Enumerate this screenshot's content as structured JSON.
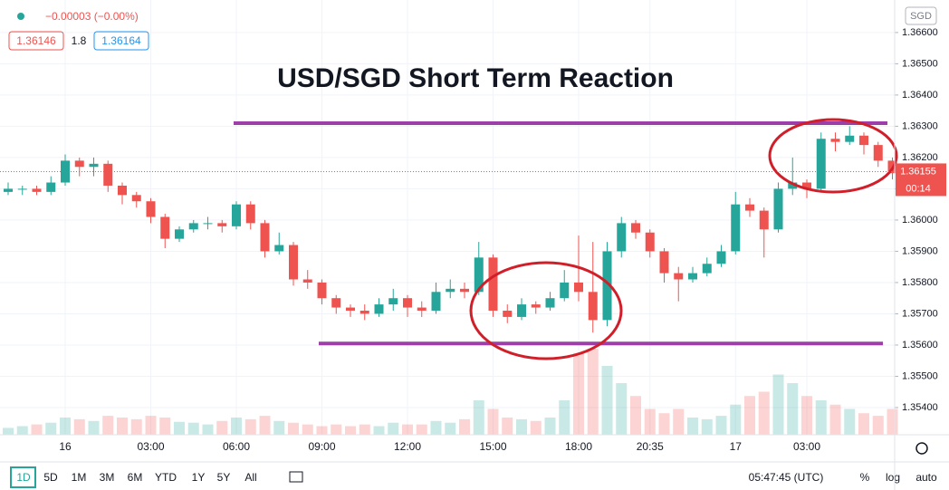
{
  "chart_data": {
    "type": "candlestick",
    "title": "USD/SGD Short Term Reaction",
    "categories": [
      null,
      null,
      null,
      null,
      "16",
      null,
      null,
      null,
      null,
      null,
      "03:00",
      null,
      null,
      null,
      null,
      null,
      "06:00",
      null,
      null,
      null,
      null,
      null,
      "09:00",
      null,
      null,
      null,
      null,
      null,
      "12:00",
      null,
      null,
      null,
      null,
      null,
      "15:00",
      null,
      null,
      null,
      null,
      null,
      "18:00",
      null,
      null,
      null,
      null,
      "20:35",
      null,
      null,
      null,
      null,
      null,
      "17",
      null,
      null,
      null,
      null,
      "03:00",
      null,
      null,
      null,
      null,
      null,
      null
    ],
    "open": [
      1.3609,
      1.361,
      1.361,
      1.3609,
      1.3612,
      1.3619,
      1.3617,
      1.3618,
      1.3611,
      1.3608,
      1.3606,
      1.3601,
      1.3594,
      1.3597,
      1.3599,
      1.3599,
      1.3598,
      1.3605,
      1.3599,
      1.359,
      1.3592,
      1.3581,
      1.358,
      1.3575,
      1.3572,
      1.3571,
      1.357,
      1.3573,
      1.3575,
      1.3572,
      1.3571,
      1.3577,
      1.3578,
      1.3577,
      1.3588,
      1.3571,
      1.3569,
      1.3573,
      1.3572,
      1.3575,
      1.358,
      1.3577,
      1.3568,
      1.359,
      1.3599,
      1.3596,
      1.359,
      1.3583,
      1.3581,
      1.3583,
      1.3586,
      1.359,
      1.3605,
      1.3603,
      1.3597,
      1.361,
      1.3612,
      1.361,
      1.3626,
      1.3625,
      1.3627,
      1.3624,
      1.3619
    ],
    "high": [
      1.3612,
      1.3611,
      1.3611,
      1.3614,
      1.3621,
      1.362,
      1.362,
      1.3619,
      1.3612,
      1.3609,
      1.3607,
      1.3602,
      1.3598,
      1.36,
      1.3601,
      1.36,
      1.3606,
      1.3606,
      1.36,
      1.3596,
      1.3593,
      1.3584,
      1.3581,
      1.3576,
      1.3573,
      1.3573,
      1.3575,
      1.3578,
      1.3576,
      1.3574,
      1.358,
      1.3581,
      1.358,
      1.3593,
      1.3589,
      1.3573,
      1.3575,
      1.3574,
      1.3577,
      1.3584,
      1.3595,
      1.3593,
      1.3593,
      1.3601,
      1.36,
      1.3597,
      1.3591,
      1.3585,
      1.3585,
      1.3588,
      1.3592,
      1.3609,
      1.3607,
      1.3604,
      1.3612,
      1.362,
      1.3613,
      1.3628,
      1.3628,
      1.363,
      1.3628,
      1.3625,
      1.362
    ],
    "low": [
      1.3608,
      1.3608,
      1.3608,
      1.3608,
      1.3611,
      1.3614,
      1.3614,
      1.3609,
      1.3605,
      1.3604,
      1.3599,
      1.3591,
      1.3593,
      1.3596,
      1.3597,
      1.3596,
      1.3597,
      1.3597,
      1.3588,
      1.3589,
      1.3579,
      1.3578,
      1.3573,
      1.357,
      1.3569,
      1.3568,
      1.3569,
      1.3571,
      1.3569,
      1.3569,
      1.357,
      1.3575,
      1.3575,
      1.3576,
      1.3569,
      1.3567,
      1.3568,
      1.357,
      1.3571,
      1.3574,
      1.3574,
      1.3564,
      1.3566,
      1.3588,
      1.3594,
      1.3588,
      1.358,
      1.3574,
      1.358,
      1.3582,
      1.3585,
      1.3589,
      1.3601,
      1.3588,
      1.3596,
      1.3608,
      1.3607,
      1.3609,
      1.3622,
      1.3624,
      1.3621,
      1.3617,
      1.3613
    ],
    "close": [
      1.361,
      1.361,
      1.3609,
      1.3612,
      1.3619,
      1.3617,
      1.3618,
      1.3611,
      1.3608,
      1.3606,
      1.3601,
      1.3594,
      1.3597,
      1.3599,
      1.3599,
      1.3598,
      1.3605,
      1.3599,
      1.359,
      1.3592,
      1.3581,
      1.358,
      1.3575,
      1.3572,
      1.3571,
      1.357,
      1.3573,
      1.3575,
      1.3572,
      1.3571,
      1.3577,
      1.3578,
      1.3577,
      1.3588,
      1.3571,
      1.3569,
      1.3573,
      1.3572,
      1.3575,
      1.358,
      1.3577,
      1.3568,
      1.359,
      1.3599,
      1.3596,
      1.359,
      1.3583,
      1.3581,
      1.3583,
      1.3586,
      1.359,
      1.3605,
      1.3603,
      1.3597,
      1.361,
      1.3612,
      1.361,
      1.3626,
      1.3625,
      1.3627,
      1.3624,
      1.3619,
      1.3615
    ],
    "volume": [
      8,
      10,
      12,
      14,
      20,
      18,
      16,
      22,
      20,
      18,
      22,
      20,
      15,
      14,
      12,
      16,
      20,
      18,
      22,
      16,
      14,
      12,
      10,
      12,
      10,
      12,
      10,
      14,
      12,
      12,
      16,
      14,
      18,
      40,
      30,
      20,
      18,
      16,
      20,
      40,
      95,
      100,
      80,
      60,
      45,
      30,
      25,
      30,
      20,
      18,
      22,
      35,
      45,
      50,
      70,
      60,
      45,
      40,
      35,
      30,
      25,
      22,
      30
    ],
    "up_color": "#26a69a",
    "down_color": "#ef5350",
    "level_color": "#9c3fa8",
    "grid": true,
    "ylim": [
      1.35313,
      1.36704
    ],
    "yticks": [
      {
        "value": 1.366,
        "label": "1.36600"
      },
      {
        "value": 1.365,
        "label": "1.36500"
      },
      {
        "value": 1.364,
        "label": "1.36400"
      },
      {
        "value": 1.363,
        "label": "1.36300"
      },
      {
        "value": 1.362,
        "label": "1.36200"
      },
      {
        "value": 1.361,
        "label": "1.36100"
      },
      {
        "value": 1.36,
        "label": "1.36000"
      },
      {
        "value": 1.359,
        "label": "1.35900"
      },
      {
        "value": 1.358,
        "label": "1.35800"
      },
      {
        "value": 1.357,
        "label": "1.35700"
      },
      {
        "value": 1.356,
        "label": "1.35600"
      },
      {
        "value": 1.355,
        "label": "1.35500"
      },
      {
        "value": 1.354,
        "label": "1.35400"
      }
    ],
    "levels": [
      1.3631,
      1.35605
    ],
    "last_price": 1.36155,
    "countdown": "00:14",
    "currency": "SGD",
    "change": "−0.00003 (−0.00%)",
    "bid": "1.36146",
    "spread": "1.8",
    "ask": "1.36164"
  },
  "toolbar": {
    "ranges": [
      "1D",
      "5D",
      "1M",
      "3M",
      "6M",
      "YTD",
      "1Y",
      "5Y",
      "All"
    ],
    "clock": "05:47:45 (UTC)",
    "options": [
      "%",
      "log",
      "auto"
    ]
  }
}
